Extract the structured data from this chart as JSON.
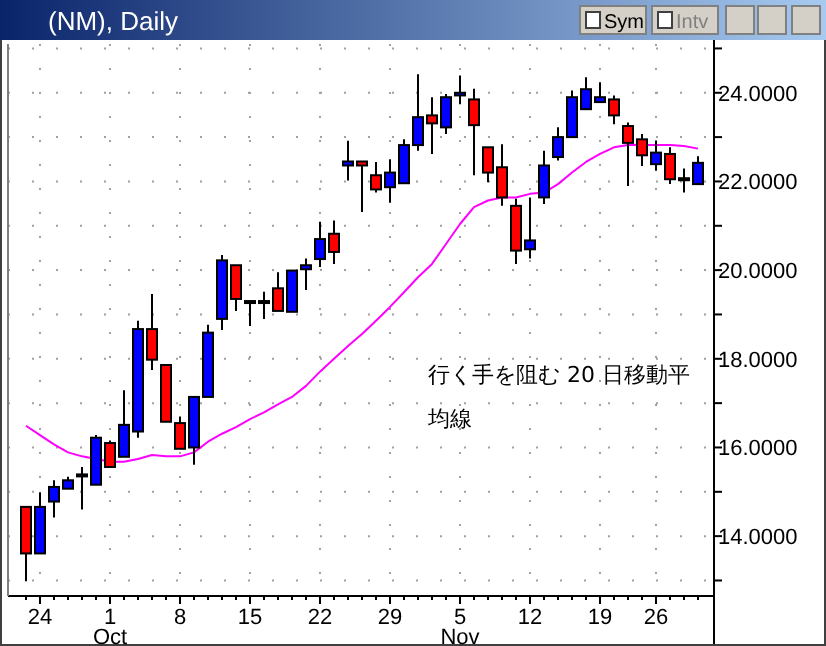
{
  "chart_data": {
    "type": "candlestick",
    "title": "(NM), Daily",
    "categories": [
      null,
      "24",
      null,
      null,
      null,
      null,
      "1",
      null,
      null,
      null,
      null,
      "8",
      null,
      null,
      null,
      null,
      "15",
      null,
      null,
      null,
      null,
      "22",
      null,
      null,
      null,
      null,
      "29",
      null,
      null,
      null,
      null,
      "5",
      null,
      null,
      null,
      null,
      "12",
      null,
      null,
      null,
      null,
      "19",
      null,
      null,
      null,
      "26",
      null,
      null,
      null
    ],
    "ohlc": [
      [
        14.66,
        14.66,
        12.98,
        13.61
      ],
      [
        13.61,
        14.99,
        13.61,
        14.66
      ],
      [
        14.78,
        15.26,
        14.42,
        15.11
      ],
      [
        15.07,
        15.34,
        15.07,
        15.26
      ],
      [
        15.37,
        15.56,
        14.6,
        15.37
      ],
      [
        15.16,
        16.28,
        15.16,
        16.22
      ],
      [
        16.1,
        16.16,
        15.54,
        15.56
      ],
      [
        15.79,
        17.29,
        15.79,
        16.51
      ],
      [
        16.36,
        18.86,
        16.22,
        18.67
      ],
      [
        18.67,
        19.46,
        17.75,
        17.98
      ],
      [
        17.86,
        17.86,
        16.58,
        16.58
      ],
      [
        16.55,
        16.7,
        15.97,
        15.97
      ],
      [
        16.0,
        17.14,
        15.61,
        17.14
      ],
      [
        17.14,
        18.77,
        17.14,
        18.59
      ],
      [
        18.9,
        20.34,
        18.65,
        20.22
      ],
      [
        20.11,
        20.11,
        19.08,
        19.35
      ],
      [
        19.28,
        19.28,
        18.74,
        19.28
      ],
      [
        19.28,
        19.51,
        18.9,
        19.28
      ],
      [
        19.59,
        19.95,
        19.08,
        19.08
      ],
      [
        19.06,
        19.99,
        19.06,
        19.99
      ],
      [
        20.02,
        20.26,
        19.55,
        20.11
      ],
      [
        20.25,
        21.09,
        20.07,
        20.7
      ],
      [
        20.82,
        21.12,
        20.14,
        20.41
      ],
      [
        22.36,
        22.92,
        22.02,
        22.45
      ],
      [
        22.45,
        22.45,
        21.31,
        22.36
      ],
      [
        22.14,
        22.44,
        21.75,
        21.82
      ],
      [
        21.87,
        22.5,
        21.52,
        22.2
      ],
      [
        21.96,
        22.95,
        21.96,
        22.82
      ],
      [
        22.82,
        24.42,
        22.69,
        23.45
      ],
      [
        23.49,
        23.9,
        22.62,
        23.31
      ],
      [
        23.22,
        23.97,
        23.07,
        23.9
      ],
      [
        23.94,
        24.39,
        23.74,
        24.0
      ],
      [
        23.85,
        24.09,
        22.14,
        23.27
      ],
      [
        22.77,
        22.77,
        21.98,
        22.2
      ],
      [
        22.32,
        22.84,
        21.45,
        21.64
      ],
      [
        21.45,
        21.61,
        20.14,
        20.44
      ],
      [
        20.47,
        21.64,
        20.26,
        20.67
      ],
      [
        21.64,
        22.69,
        21.49,
        22.36
      ],
      [
        22.55,
        23.22,
        22.47,
        23.0
      ],
      [
        23.0,
        24.05,
        23.0,
        23.9
      ],
      [
        23.63,
        24.35,
        23.63,
        24.08
      ],
      [
        23.79,
        24.24,
        23.79,
        23.9
      ],
      [
        23.85,
        23.94,
        23.29,
        23.49
      ],
      [
        23.25,
        23.33,
        21.9,
        22.87
      ],
      [
        22.95,
        23.07,
        22.35,
        22.59
      ],
      [
        22.39,
        22.92,
        22.24,
        22.65
      ],
      [
        22.62,
        22.77,
        21.94,
        22.05
      ],
      [
        22.05,
        22.29,
        21.75,
        22.05
      ],
      [
        21.94,
        22.57,
        21.94,
        22.42
      ]
    ],
    "colors": [
      "#ff0000",
      "#0000ff",
      "#0000ff",
      "#0000ff",
      "#000000",
      "#0000ff",
      "#ff0000",
      "#0000ff",
      "#0000ff",
      "#ff0000",
      "#ff0000",
      "#ff0000",
      "#0000ff",
      "#0000ff",
      "#0000ff",
      "#ff0000",
      "#000000",
      "#000000",
      "#ff0000",
      "#0000ff",
      "#0000ff",
      "#0000ff",
      "#ff0000",
      "#0000ff",
      "#ff0000",
      "#ff0000",
      "#0000ff",
      "#0000ff",
      "#0000ff",
      "#ff0000",
      "#0000ff",
      "#0000ff",
      "#ff0000",
      "#ff0000",
      "#ff0000",
      "#ff0000",
      "#0000ff",
      "#0000ff",
      "#0000ff",
      "#0000ff",
      "#0000ff",
      "#0000ff",
      "#ff0000",
      "#ff0000",
      "#ff0000",
      "#0000ff",
      "#ff0000",
      "#000000",
      "#0000ff"
    ],
    "series": [
      {
        "type": "line",
        "color": "#ff00ff",
        "values": [
          16.49,
          16.28,
          16.07,
          15.89,
          15.8,
          15.74,
          15.68,
          15.68,
          15.74,
          15.83,
          15.8,
          15.8,
          15.89,
          16.13,
          16.31,
          16.46,
          16.64,
          16.79,
          16.97,
          17.14,
          17.39,
          17.71,
          18.0,
          18.29,
          18.56,
          18.86,
          19.17,
          19.5,
          19.84,
          20.14,
          20.59,
          21.04,
          21.42,
          21.57,
          21.64,
          21.64,
          21.72,
          21.75,
          21.94,
          22.2,
          22.44,
          22.62,
          22.77,
          22.82,
          22.82,
          22.82,
          22.82,
          22.8,
          22.74
        ]
      }
    ],
    "ylim": [
      12.65,
      25.1
    ],
    "yticks": [
      {
        "value": 13,
        "label": null
      },
      {
        "value": 14,
        "label": "14.0000"
      },
      {
        "value": 15,
        "label": null
      },
      {
        "value": 16,
        "label": "16.0000"
      },
      {
        "value": 17,
        "label": null
      },
      {
        "value": 18,
        "label": "18.0000"
      },
      {
        "value": 19,
        "label": null
      },
      {
        "value": 20,
        "label": "20.0000"
      },
      {
        "value": 21,
        "label": null
      },
      {
        "value": 22,
        "label": "22.0000"
      },
      {
        "value": 23,
        "label": null
      },
      {
        "value": 24,
        "label": "24.0000"
      },
      {
        "value": 25,
        "label": null
      }
    ],
    "grid": true,
    "annotations": [
      "Oct",
      "Nov",
      "行く手を阻む 20 日移動平均線",
      "Sym",
      "Intv"
    ]
  }
}
